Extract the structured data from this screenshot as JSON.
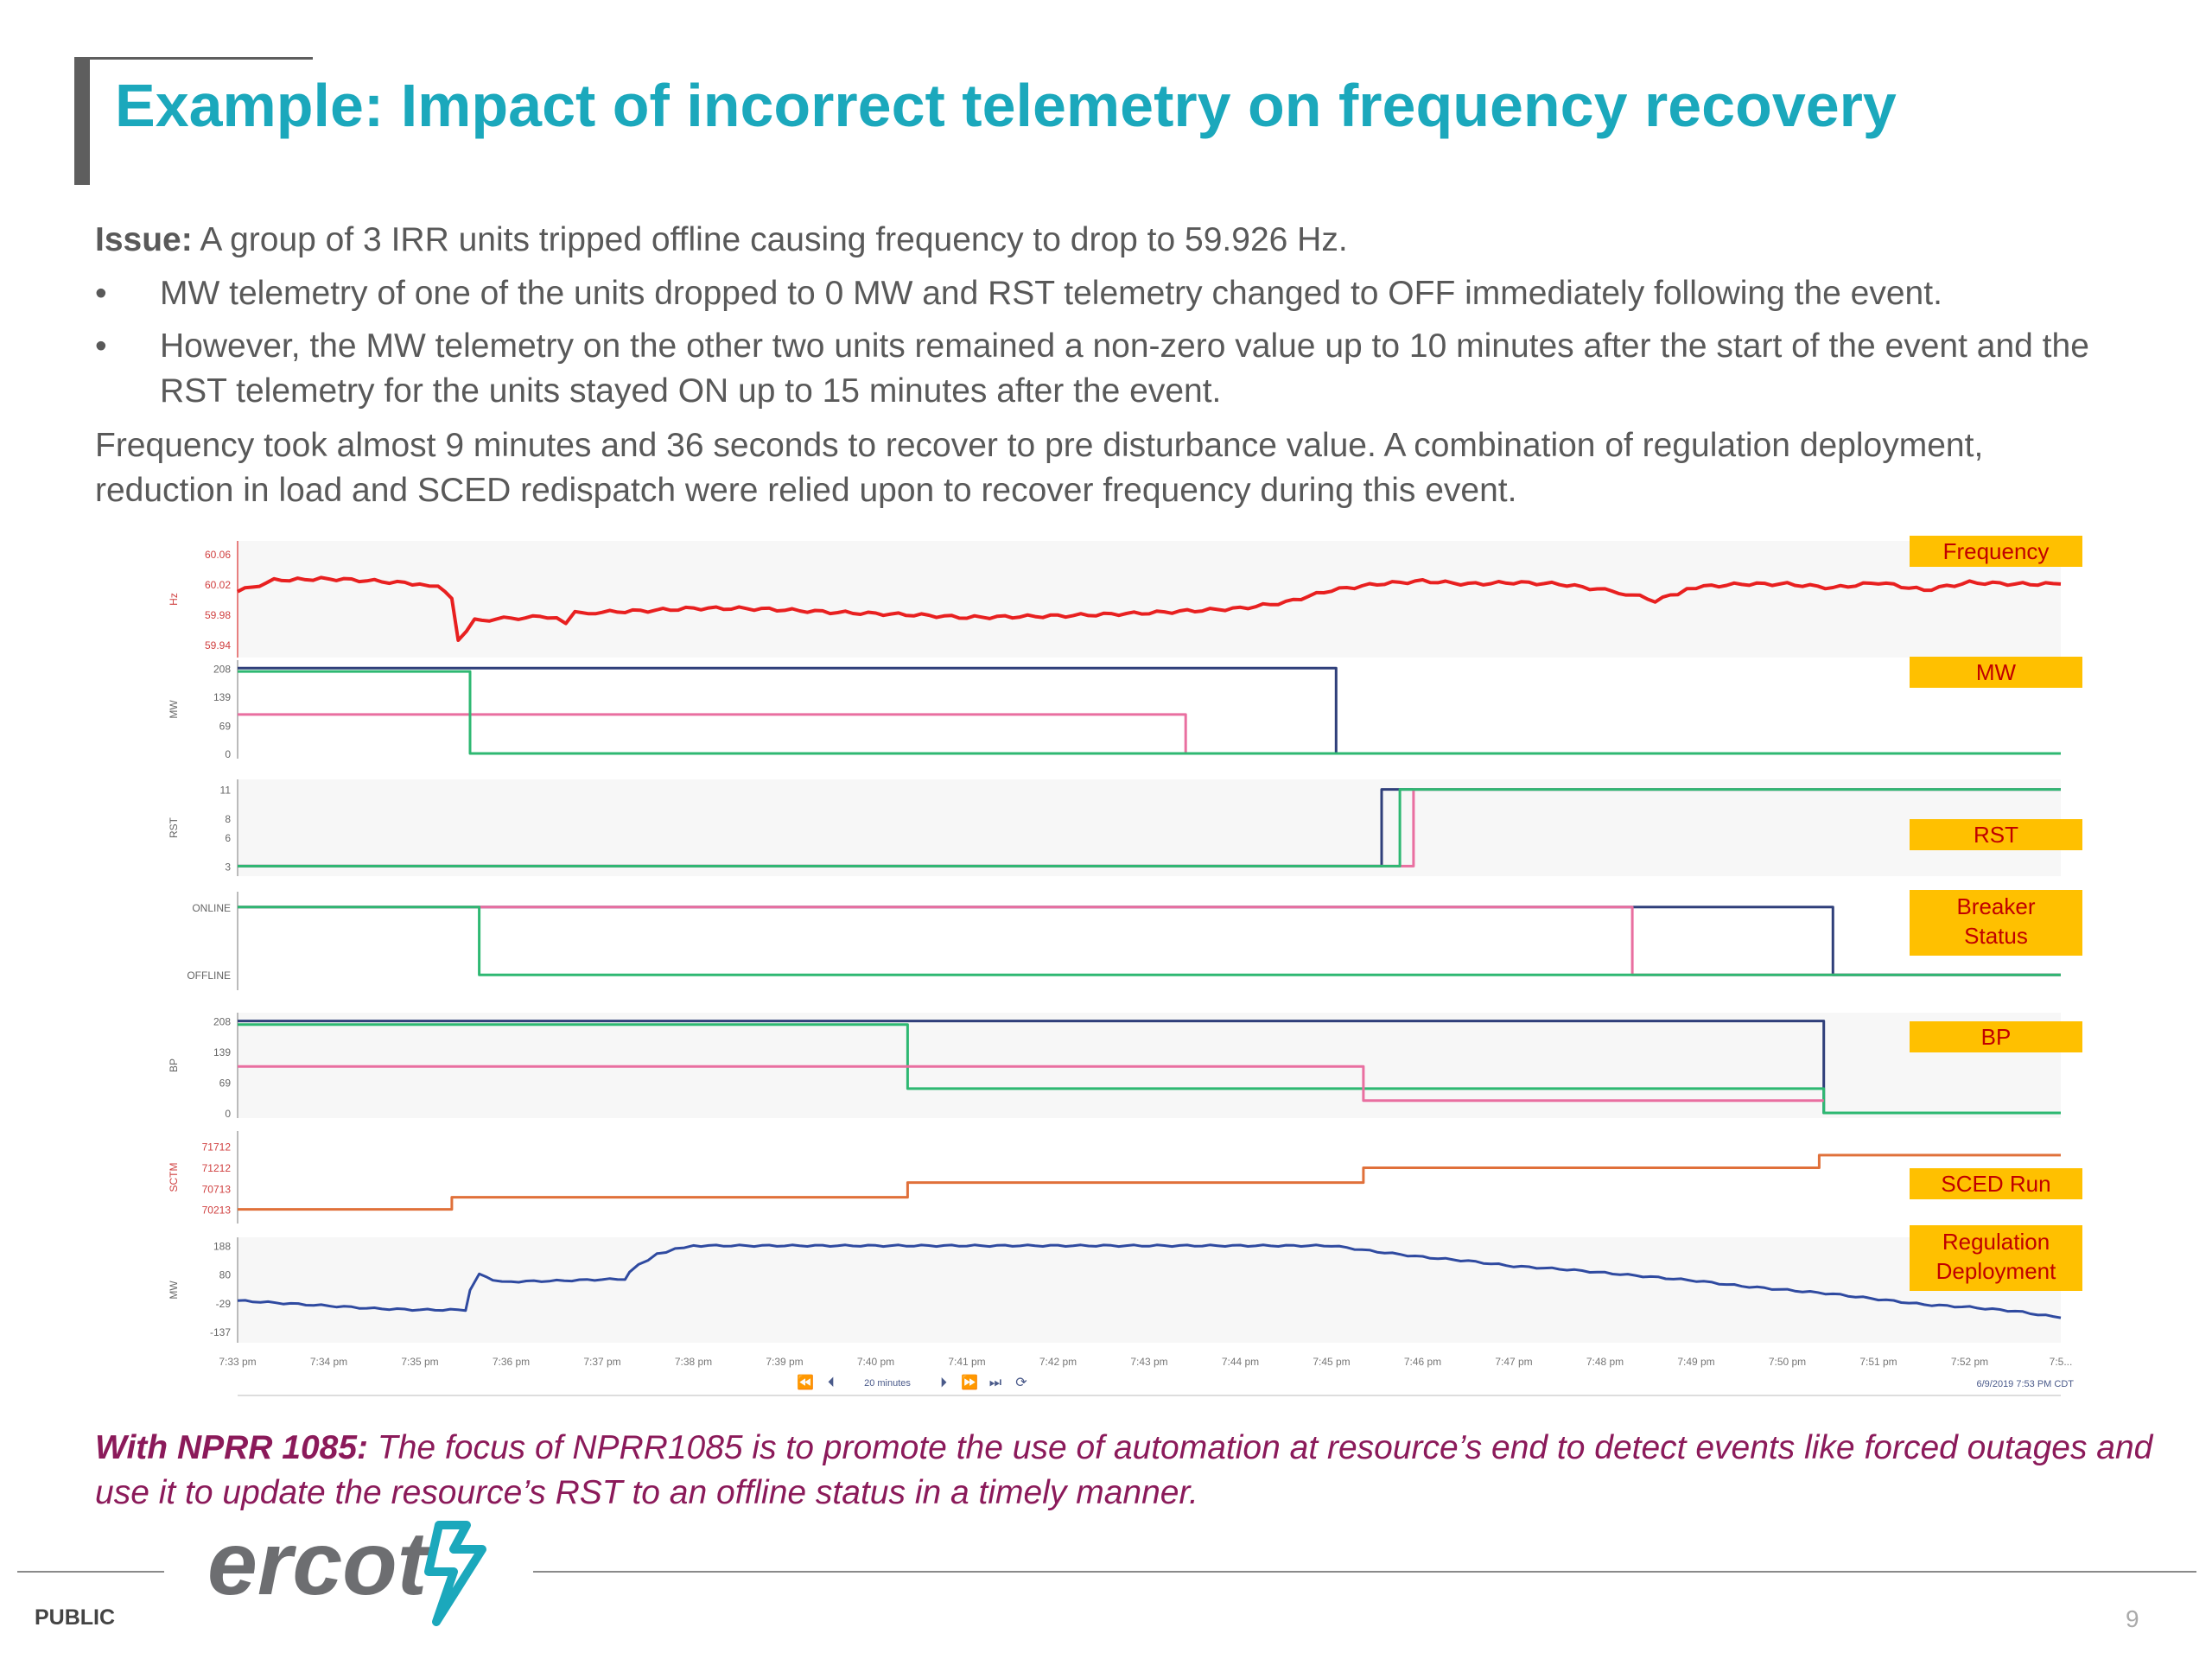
{
  "slide": {
    "title": "Example: Impact of incorrect telemetry on frequency recovery",
    "issue_label": "Issue:",
    "issue_text": " A group of 3 IRR units tripped offline causing frequency to drop to 59.926 Hz.",
    "bullets": [
      "MW telemetry of one of the units dropped to 0 MW and RST telemetry changed to OFF immediately following the event.",
      "However, the MW telemetry on the other two units remained a non-zero value up to 10 minutes after the start of the event and the RST telemetry for the units stayed ON up to 15 minutes after the event."
    ],
    "bullet_symbol": "•",
    "frequency_text": "Frequency took almost 9 minutes and 36 seconds to recover to pre disturbance value. A combination of regulation deployment, reduction in load and SCED redispatch were relied upon to recover frequency during this event.",
    "nprr_label": "With NPRR 1085:",
    "nprr_text": " The focus of NPRR1085 is to promote the use of automation at resource’s end to detect events like forced outages and use it to update the resource’s RST to an offline status in a timely manner.",
    "logo_text": "ercot",
    "footer_label": "PUBLIC",
    "page_number": "9"
  },
  "colors": {
    "title": "#1ba8bc",
    "frequency_line": "#e82020",
    "unit_a": "#2f3f7a",
    "unit_b": "#e96fa0",
    "unit_c": "#2eb872",
    "sced": "#e0703a",
    "regulation": "#2f4aa0",
    "label_bg": "#ffc000",
    "label_text": "#c00000",
    "nprr": "#8b1a5a"
  },
  "chart_data": {
    "type": "line",
    "x_axis": {
      "tick_labels": [
        "7:33 pm",
        "7:34 pm",
        "7:35 pm",
        "7:36 pm",
        "7:37 pm",
        "7:38 pm",
        "7:39 pm",
        "7:40 pm",
        "7:41 pm",
        "7:42 pm",
        "7:43 pm",
        "7:44 pm",
        "7:45 pm",
        "7:46 pm",
        "7:47 pm",
        "7:48 pm",
        "7:49 pm",
        "7:50 pm",
        "7:51 pm",
        "7:52 pm",
        "7:5..."
      ],
      "xlim": [
        33.0,
        53.0
      ],
      "nav_text": "20 minutes",
      "timestamp": "6/9/2019 7:53 PM CDT"
    },
    "panels": [
      {
        "label": "Frequency",
        "ylabel": "Hz",
        "ytick_labels": [
          "60.06",
          "60.02",
          "59.98",
          "59.94"
        ],
        "yticks": [
          60.06,
          60.02,
          59.98,
          59.94
        ],
        "ylim": [
          59.93,
          60.07
        ],
        "series": [
          {
            "color_key": "frequency_line",
            "noisy": true,
            "points": [
              [
                33.0,
                60.01
              ],
              [
                33.4,
                60.025
              ],
              [
                34.0,
                60.027
              ],
              [
                34.5,
                60.024
              ],
              [
                35.0,
                60.02
              ],
              [
                35.2,
                60.016
              ],
              [
                35.35,
                60.0
              ],
              [
                35.42,
                59.946
              ],
              [
                35.6,
                59.972
              ],
              [
                36.0,
                59.975
              ],
              [
                36.4,
                59.977
              ],
              [
                36.6,
                59.97
              ],
              [
                36.7,
                59.982
              ],
              [
                37.0,
                59.983
              ],
              [
                37.5,
                59.985
              ],
              [
                38.0,
                59.988
              ],
              [
                38.5,
                59.988
              ],
              [
                39.0,
                59.986
              ],
              [
                39.5,
                59.983
              ],
              [
                40.0,
                59.981
              ],
              [
                40.5,
                59.979
              ],
              [
                41.0,
                59.976
              ],
              [
                41.5,
                59.977
              ],
              [
                42.0,
                59.978
              ],
              [
                42.5,
                59.98
              ],
              [
                43.0,
                59.982
              ],
              [
                43.5,
                59.985
              ],
              [
                44.0,
                59.988
              ],
              [
                44.5,
                59.996
              ],
              [
                45.0,
                60.012
              ],
              [
                45.5,
                60.02
              ],
              [
                46.0,
                60.024
              ],
              [
                46.5,
                60.02
              ],
              [
                47.0,
                60.022
              ],
              [
                47.5,
                60.02
              ],
              [
                48.0,
                60.012
              ],
              [
                48.3,
                60.006
              ],
              [
                48.55,
                59.998
              ],
              [
                48.8,
                60.008
              ],
              [
                49.0,
                60.016
              ],
              [
                49.5,
                60.02
              ],
              [
                50.0,
                60.02
              ],
              [
                50.5,
                60.015
              ],
              [
                51.0,
                60.022
              ],
              [
                51.5,
                60.012
              ],
              [
                52.0,
                60.022
              ],
              [
                52.5,
                60.02
              ],
              [
                53.0,
                60.02
              ]
            ]
          }
        ]
      },
      {
        "label": "MW",
        "ylabel": "MW",
        "ytick_labels": [
          "208",
          "139",
          "69",
          "0"
        ],
        "yticks": [
          208,
          139,
          69,
          0
        ],
        "ylim": [
          0,
          215
        ],
        "series": [
          {
            "color_key": "unit_a",
            "points": [
              [
                33.0,
                208
              ],
              [
                45.05,
                208
              ],
              [
                45.05,
                0
              ],
              [
                53.0,
                0
              ]
            ]
          },
          {
            "color_key": "unit_b",
            "points": [
              [
                33.0,
                95
              ],
              [
                43.4,
                95
              ],
              [
                43.4,
                0
              ],
              [
                53.0,
                0
              ]
            ]
          },
          {
            "color_key": "unit_c",
            "points": [
              [
                33.0,
                200
              ],
              [
                35.55,
                200
              ],
              [
                35.55,
                0
              ],
              [
                53.0,
                0
              ]
            ]
          }
        ]
      },
      {
        "label": "RST",
        "ylabel": "RST",
        "ytick_labels": [
          "11",
          "8",
          "6",
          "3"
        ],
        "yticks": [
          11,
          8,
          6,
          3
        ],
        "ylim": [
          2.5,
          11.5
        ],
        "series": [
          {
            "color_key": "unit_a",
            "points": [
              [
                33.0,
                3
              ],
              [
                45.55,
                3
              ],
              [
                45.55,
                3.7
              ],
              [
                45.55,
                11
              ],
              [
                53.0,
                11
              ]
            ]
          },
          {
            "color_key": "unit_b",
            "points": [
              [
                33.0,
                3
              ],
              [
                45.9,
                3
              ],
              [
                45.9,
                11
              ],
              [
                53.0,
                11
              ]
            ]
          },
          {
            "color_key": "unit_c",
            "points": [
              [
                33.0,
                3
              ],
              [
                45.75,
                3
              ],
              [
                45.75,
                11
              ],
              [
                53.0,
                11
              ]
            ]
          }
        ]
      },
      {
        "label": "Breaker Status",
        "ylabel": "",
        "ytick_labels": [
          "ONLINE",
          "OFFLINE"
        ],
        "yticks": [
          1,
          0
        ],
        "ylim": [
          -0.15,
          1.15
        ],
        "series": [
          {
            "color_key": "unit_a",
            "points": [
              [
                33.0,
                1
              ],
              [
                50.5,
                1
              ],
              [
                50.5,
                0
              ],
              [
                53.0,
                0
              ]
            ]
          },
          {
            "color_key": "unit_b",
            "points": [
              [
                33.0,
                1
              ],
              [
                48.3,
                1
              ],
              [
                48.3,
                0
              ],
              [
                53.0,
                0
              ]
            ]
          },
          {
            "color_key": "unit_c",
            "points": [
              [
                33.0,
                1
              ],
              [
                35.65,
                1
              ],
              [
                35.65,
                0
              ],
              [
                53.0,
                0
              ]
            ]
          }
        ]
      },
      {
        "label": "BP",
        "ylabel": "BP",
        "ytick_labels": [
          "208",
          "139",
          "69",
          "0"
        ],
        "yticks": [
          208,
          139,
          69,
          0
        ],
        "ylim": [
          0,
          215
        ],
        "series": [
          {
            "color_key": "unit_a",
            "points": [
              [
                33.0,
                208
              ],
              [
                50.4,
                208
              ],
              [
                50.4,
                0
              ],
              [
                53.0,
                0
              ]
            ]
          },
          {
            "color_key": "unit_c",
            "points": [
              [
                33.0,
                200
              ],
              [
                40.35,
                200
              ],
              [
                40.35,
                55
              ],
              [
                50.4,
                55
              ],
              [
                50.4,
                0
              ],
              [
                53.0,
                0
              ]
            ]
          },
          {
            "color_key": "unit_b",
            "points": [
              [
                33.0,
                105
              ],
              [
                45.35,
                105
              ],
              [
                45.35,
                28
              ],
              [
                50.4,
                28
              ]
            ]
          }
        ]
      },
      {
        "label": "SCED Run",
        "ylabel": "SCTM",
        "ytick_labels": [
          "71712",
          "71212",
          "70713",
          "70213"
        ],
        "yticks": [
          71712,
          71212,
          70713,
          70213
        ],
        "ylim": [
          70000,
          71950
        ],
        "series": [
          {
            "color_key": "sced",
            "points": [
              [
                33.0,
                70213
              ],
              [
                35.35,
                70213
              ],
              [
                35.35,
                70500
              ],
              [
                40.35,
                70500
              ],
              [
                40.35,
                70850
              ],
              [
                45.35,
                70850
              ],
              [
                45.35,
                71200
              ],
              [
                50.35,
                71200
              ],
              [
                50.35,
                71500
              ],
              [
                53.0,
                71500
              ]
            ]
          }
        ]
      },
      {
        "label": "Regulation Deployment",
        "ylabel": "MW",
        "ytick_labels": [
          "188",
          "80",
          "-29",
          "-137"
        ],
        "yticks": [
          188,
          80,
          -29,
          -137
        ],
        "ylim": [
          -160,
          200
        ],
        "series": [
          {
            "color_key": "regulation",
            "noisy": true,
            "points": [
              [
                33.0,
                -20
              ],
              [
                33.5,
                -30
              ],
              [
                34.0,
                -40
              ],
              [
                34.5,
                -50
              ],
              [
                35.0,
                -55
              ],
              [
                35.5,
                -55
              ],
              [
                35.55,
                20
              ],
              [
                35.65,
                80
              ],
              [
                35.8,
                55
              ],
              [
                36.0,
                52
              ],
              [
                36.5,
                55
              ],
              [
                37.0,
                60
              ],
              [
                37.25,
                62
              ],
              [
                37.3,
                90
              ],
              [
                37.4,
                115
              ],
              [
                37.6,
                155
              ],
              [
                37.8,
                175
              ],
              [
                38.0,
                188
              ],
              [
                40.0,
                188
              ],
              [
                42.0,
                188
              ],
              [
                45.0,
                188
              ],
              [
                45.5,
                165
              ],
              [
                46.0,
                145
              ],
              [
                46.5,
                130
              ],
              [
                47.0,
                110
              ],
              [
                47.5,
                100
              ],
              [
                48.0,
                85
              ],
              [
                48.5,
                70
              ],
              [
                49.0,
                55
              ],
              [
                49.5,
                35
              ],
              [
                50.0,
                20
              ],
              [
                50.5,
                5
              ],
              [
                51.0,
                -15
              ],
              [
                51.5,
                -35
              ],
              [
                52.0,
                -45
              ],
              [
                52.5,
                -60
              ],
              [
                53.0,
                -85
              ]
            ]
          }
        ]
      }
    ]
  }
}
